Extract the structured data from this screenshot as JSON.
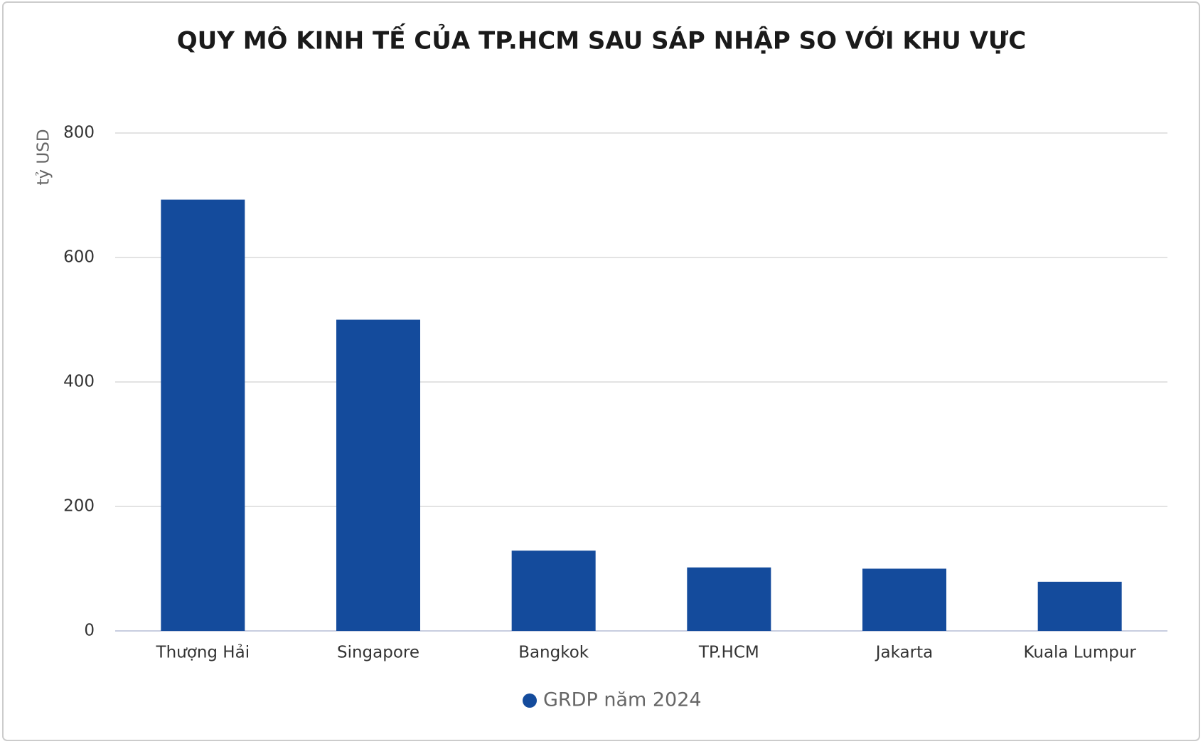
{
  "chart_data": {
    "type": "bar",
    "title": "QUY MÔ KINH TẾ CỦA TP.HCM SAU SÁP NHẬP SO VỚI KHU VỰC",
    "y_label": "tỷ USD",
    "categories": [
      "Thượng Hải",
      "Singapore",
      "Bangkok",
      "TP.HCM",
      "Jakarta",
      "Kuala Lumpur"
    ],
    "series": [
      {
        "name": "GRDP năm 2024",
        "color": "#144b9c",
        "values": [
          693,
          500,
          129,
          102,
          100,
          79
        ]
      }
    ],
    "ylim": [
      0,
      800
    ],
    "yticks": [
      0,
      200,
      400,
      600,
      800
    ],
    "grid": true,
    "legend": "bottom"
  }
}
